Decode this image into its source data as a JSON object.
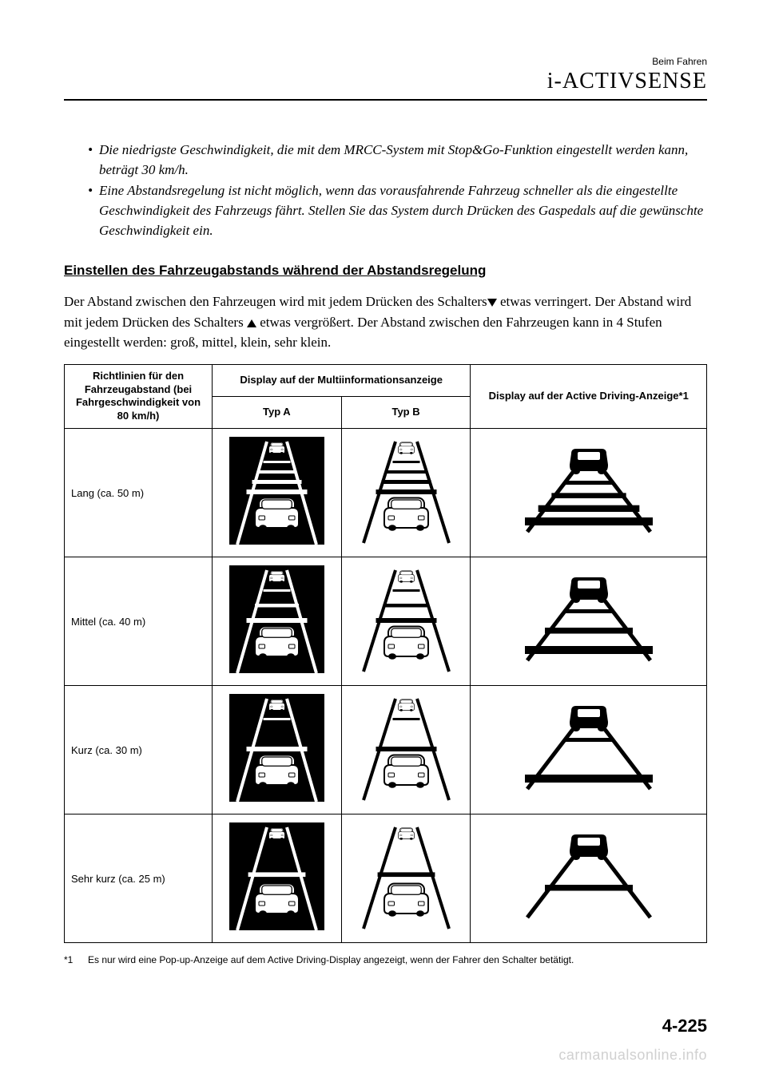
{
  "header": {
    "small": "Beim Fahren",
    "large": "i-ACTIVSENSE"
  },
  "bullets": [
    "Die niedrigste Geschwindigkeit, die mit dem MRCC-System mit Stop&Go-Funktion eingestellt werden kann, beträgt 30 km/h.",
    "Eine Abstandsregelung ist nicht möglich, wenn das vorausfahrende Fahrzeug schneller als die eingestellte Geschwindigkeit des Fahrzeugs fährt. Stellen Sie das System durch Drücken des Gaspedals auf die gewünschte Geschwindigkeit ein."
  ],
  "subheading": "Einstellen des Fahrzeugabstands während der Abstandsregelung",
  "para_parts": {
    "p1": "Der Abstand zwischen den Fahrzeugen wird mit jedem Drücken des Schalters",
    "p2": " etwas verringert. Der Abstand wird mit jedem Drücken des Schalters ",
    "p3": " etwas vergrößert. Der Abstand zwischen den Fahrzeugen kann in 4 Stufen eingestellt werden: groß, mittel, klein, sehr klein."
  },
  "table": {
    "col1_header": "Richtlinien für den Fahrzeugabstand (bei Fahrgeschwindig­keit von 80 km/h)",
    "col2_header": "Display auf der Multiinformationsanzeige",
    "col2a": "Typ A",
    "col2b": "Typ B",
    "col3_header": "Display auf der Active Driving-Anzeige*1",
    "rows": [
      {
        "label": "Lang (ca. 50 m)",
        "bars": 4
      },
      {
        "label": "Mittel (ca. 40 m)",
        "bars": 3
      },
      {
        "label": "Kurz (ca. 30 m)",
        "bars": 2
      },
      {
        "label": "Sehr kurz (ca. 25 m)",
        "bars": 1
      }
    ]
  },
  "footnote": {
    "mark": "*1",
    "text": "Es nur wird eine Pop-up-Anzeige auf dem Active Driving-Display angezeigt, wenn der Fahrer den Schalter betätigt."
  },
  "page_num": "4-225",
  "watermark": "carmanualsonline.info",
  "svg": {
    "bar_color": "#000000",
    "bg_white": "#ffffff"
  }
}
